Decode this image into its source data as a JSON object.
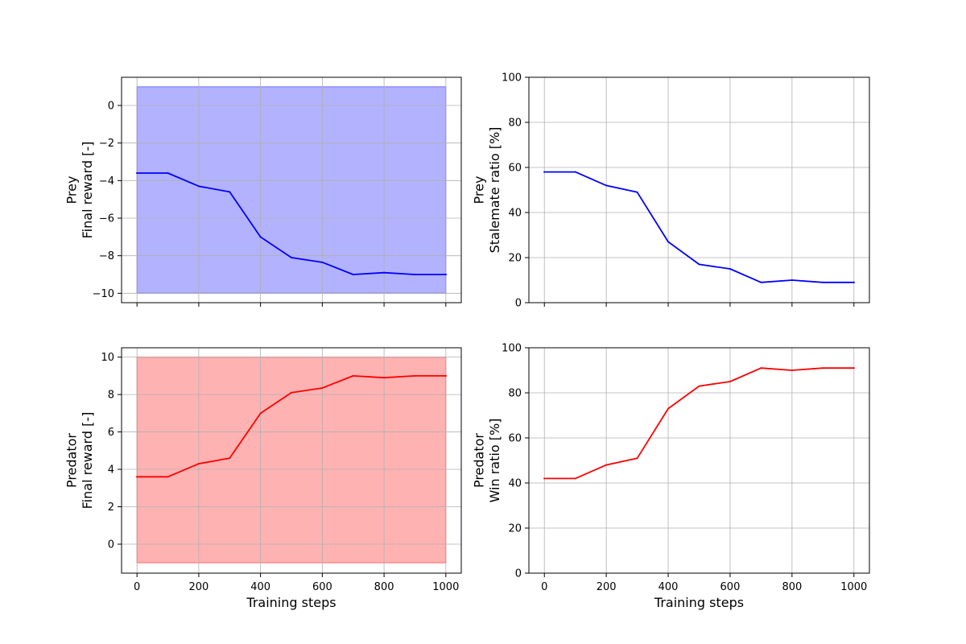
{
  "chart_data": [
    {
      "type": "line",
      "panel": "top-left",
      "x": [
        0,
        100,
        200,
        300,
        400,
        500,
        600,
        700,
        800,
        900,
        1000
      ],
      "series": [
        {
          "values": [
            -3.6,
            -3.6,
            -4.3,
            -4.6,
            -7.0,
            -8.1,
            -8.35,
            -9.0,
            -8.9,
            -9.0,
            -9.0
          ],
          "color": "#0000ff"
        }
      ],
      "band": {
        "low": -10,
        "high": 1,
        "color": "#0000ff",
        "alpha": 0.3
      },
      "ylabel_lines": [
        "Prey",
        "Final reward [-]"
      ],
      "xlabel": "",
      "xlim": [
        -50,
        1050
      ],
      "ylim": [
        -10.5,
        1.5
      ],
      "xticks": [
        0,
        200,
        400,
        600,
        800,
        1000
      ],
      "yticks": [
        -10,
        -8,
        -6,
        -4,
        -2,
        0
      ],
      "xtick_labels": [],
      "ytick_labels": [
        "−10",
        "−8",
        "−6",
        "−4",
        "−2",
        "0"
      ],
      "grid": true
    },
    {
      "type": "line",
      "panel": "top-right",
      "x": [
        0,
        100,
        200,
        300,
        400,
        500,
        600,
        700,
        800,
        900,
        1000
      ],
      "series": [
        {
          "values": [
            58,
            58,
            52,
            49,
            27,
            17,
            15,
            9,
            10,
            9,
            9
          ],
          "color": "#0000ff"
        }
      ],
      "ylabel_lines": [
        "Prey",
        "Stalemate ratio [%]"
      ],
      "xlabel": "",
      "xlim": [
        -50,
        1050
      ],
      "ylim": [
        0,
        100
      ],
      "xticks": [
        0,
        200,
        400,
        600,
        800,
        1000
      ],
      "yticks": [
        0,
        20,
        40,
        60,
        80,
        100
      ],
      "xtick_labels": [],
      "ytick_labels": [
        "0",
        "20",
        "40",
        "60",
        "80",
        "100"
      ],
      "grid": true
    },
    {
      "type": "line",
      "panel": "bottom-left",
      "x": [
        0,
        100,
        200,
        300,
        400,
        500,
        600,
        700,
        800,
        900,
        1000
      ],
      "series": [
        {
          "values": [
            3.6,
            3.6,
            4.3,
            4.6,
            7.0,
            8.1,
            8.35,
            9.0,
            8.9,
            9.0,
            9.0
          ],
          "color": "#ff0000"
        }
      ],
      "band": {
        "low": -1,
        "high": 10,
        "color": "#ff0000",
        "alpha": 0.3
      },
      "ylabel_lines": [
        "Predator",
        "Final reward [-]"
      ],
      "xlabel": "Training steps",
      "xlim": [
        -50,
        1050
      ],
      "ylim": [
        -1.55,
        10.5
      ],
      "xticks": [
        0,
        200,
        400,
        600,
        800,
        1000
      ],
      "yticks": [
        0,
        2,
        4,
        6,
        8,
        10
      ],
      "xtick_labels": [
        "0",
        "200",
        "400",
        "600",
        "800",
        "1000"
      ],
      "ytick_labels": [
        "0",
        "2",
        "4",
        "6",
        "8",
        "10"
      ],
      "grid": true
    },
    {
      "type": "line",
      "panel": "bottom-right",
      "x": [
        0,
        100,
        200,
        300,
        400,
        500,
        600,
        700,
        800,
        900,
        1000
      ],
      "series": [
        {
          "values": [
            42,
            42,
            48,
            51,
            73,
            83,
            85,
            91,
            90,
            91,
            91
          ],
          "color": "#ff0000"
        }
      ],
      "ylabel_lines": [
        "Predator",
        "Win ratio [%]"
      ],
      "xlabel": "Training steps",
      "xlim": [
        -50,
        1050
      ],
      "ylim": [
        0,
        100
      ],
      "xticks": [
        0,
        200,
        400,
        600,
        800,
        1000
      ],
      "yticks": [
        0,
        20,
        40,
        60,
        80,
        100
      ],
      "xtick_labels": [
        "0",
        "200",
        "400",
        "600",
        "800",
        "1000"
      ],
      "ytick_labels": [
        "0",
        "20",
        "40",
        "60",
        "80",
        "100"
      ],
      "grid": true
    }
  ]
}
